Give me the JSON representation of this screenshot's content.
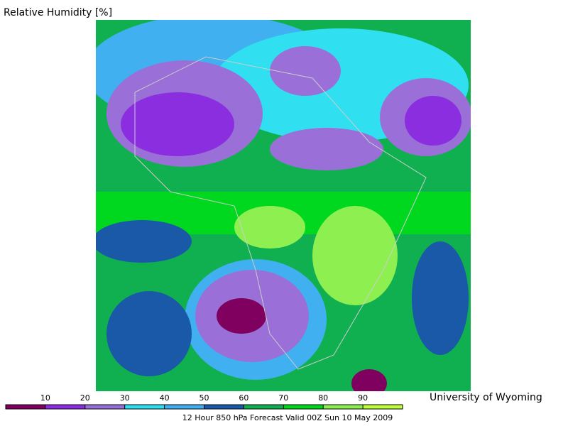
{
  "title": "Relative Humidity [%]",
  "credit": "University of Wyoming",
  "caption": "12 Hour 850 hPa Forecast Valid 00Z Sun 10 May 2009",
  "colorbar": {
    "lim": [
      0,
      100
    ],
    "ticks": [
      10,
      20,
      30,
      40,
      50,
      60,
      70,
      80,
      90
    ],
    "colors": [
      "#800060",
      "#8a2ee0",
      "#9a70d8",
      "#30e0f0",
      "#40b0f0",
      "#1a58a8",
      "#10b050",
      "#00d820",
      "#8ef050",
      "#c0ff40"
    ]
  }
}
